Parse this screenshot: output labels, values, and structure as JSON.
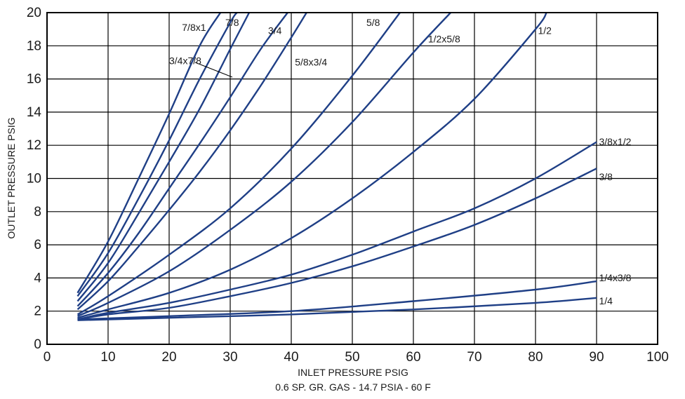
{
  "chart_data": {
    "type": "line",
    "title": "",
    "xlabel": "INLET  PRESSURE PSIG",
    "xlabel_sub": "0.6 SP. GR. GAS - 14.7 PSIA - 60 F",
    "ylabel": "OUTLET PRESSURE PSIG",
    "xlim": [
      0,
      100
    ],
    "ylim": [
      0,
      20
    ],
    "grid": true,
    "legend": "none",
    "x_ticks": [
      {
        "value": 0,
        "label": "0"
      },
      {
        "value": 10,
        "label": "10"
      },
      {
        "value": 20,
        "label": "20"
      },
      {
        "value": 30,
        "label": "30"
      },
      {
        "value": 40,
        "label": "40"
      },
      {
        "value": 50,
        "label": "50"
      },
      {
        "value": 60,
        "label": "60"
      },
      {
        "value": 70,
        "label": "70"
      },
      {
        "value": 80,
        "label": "80"
      },
      {
        "value": 90,
        "label": "90"
      },
      {
        "value": 100,
        "label": "100"
      }
    ],
    "y_ticks": [
      {
        "value": 0,
        "label": "0"
      },
      {
        "value": 2,
        "label": "2"
      },
      {
        "value": 4,
        "label": "4"
      },
      {
        "value": 6,
        "label": "6"
      },
      {
        "value": 8,
        "label": "8"
      },
      {
        "value": 10,
        "label": "10"
      },
      {
        "value": 12,
        "label": "12"
      },
      {
        "value": 14,
        "label": "14"
      },
      {
        "value": 16,
        "label": "16"
      },
      {
        "value": 18,
        "label": "18"
      },
      {
        "value": 20,
        "label": "20"
      }
    ],
    "line_color": "#1f3f86",
    "series": [
      {
        "name": "7/8x1",
        "x": [
          5,
          10,
          15,
          20,
          25,
          28.4
        ],
        "y": [
          3.1,
          6.2,
          10.0,
          13.9,
          18.0,
          20
        ]
      },
      {
        "name": "7/8",
        "x": [
          5,
          10,
          15,
          20,
          25,
          30,
          31.1
        ],
        "y": [
          2.9,
          5.5,
          8.8,
          12.3,
          16.0,
          19.4,
          20
        ]
      },
      {
        "name": "3/4x7/8",
        "x": [
          5,
          10,
          15,
          20,
          25,
          30,
          33.1
        ],
        "y": [
          2.6,
          4.9,
          7.9,
          11.0,
          14.2,
          17.8,
          20
        ]
      },
      {
        "name": "3/4",
        "x": [
          5,
          10,
          15,
          20,
          25,
          30,
          35,
          39.4
        ],
        "y": [
          2.3,
          4.3,
          6.7,
          9.4,
          12.1,
          14.9,
          17.8,
          20
        ]
      },
      {
        "name": "5/8x3/4",
        "x": [
          5,
          10,
          15,
          20,
          25,
          30,
          35,
          40,
          42.5
        ],
        "y": [
          2.1,
          3.8,
          5.9,
          8.1,
          10.4,
          12.9,
          15.6,
          18.5,
          20
        ]
      },
      {
        "name": "5/8",
        "x": [
          5,
          10,
          20,
          30,
          40,
          50,
          57.8
        ],
        "y": [
          1.8,
          2.9,
          5.4,
          8.2,
          11.8,
          16.2,
          20
        ]
      },
      {
        "name": "1/2x5/8",
        "x": [
          5,
          10,
          20,
          30,
          40,
          50,
          60,
          66.1
        ],
        "y": [
          1.7,
          2.5,
          4.4,
          6.9,
          9.8,
          13.4,
          17.6,
          20
        ]
      },
      {
        "name": "1/2",
        "x": [
          5,
          10,
          20,
          30,
          40,
          50,
          60,
          70,
          80,
          81.8
        ],
        "y": [
          1.6,
          2.1,
          3.1,
          4.5,
          6.4,
          8.8,
          11.6,
          14.8,
          19.0,
          20
        ]
      },
      {
        "name": "3/8x1/2",
        "x": [
          5,
          10,
          20,
          30,
          40,
          50,
          60,
          70,
          80,
          90
        ],
        "y": [
          1.5,
          1.9,
          2.5,
          3.3,
          4.2,
          5.4,
          6.8,
          8.2,
          10.0,
          12.2
        ]
      },
      {
        "name": "3/8",
        "x": [
          5,
          10,
          20,
          30,
          40,
          50,
          60,
          70,
          80,
          90
        ],
        "y": [
          1.5,
          1.8,
          2.2,
          2.9,
          3.7,
          4.7,
          5.9,
          7.2,
          8.8,
          10.6
        ]
      },
      {
        "name": "1/4x3/8",
        "x": [
          5,
          20,
          40,
          60,
          80,
          90
        ],
        "y": [
          1.5,
          1.7,
          2.0,
          2.6,
          3.3,
          3.8
        ]
      },
      {
        "name": "1/4",
        "x": [
          5,
          20,
          40,
          60,
          80,
          90
        ],
        "y": [
          1.45,
          1.6,
          1.8,
          2.1,
          2.5,
          2.8
        ]
      }
    ],
    "series_labels": [
      {
        "series": "7/8x1",
        "text": "7/8x1",
        "anchor_x": 22.1,
        "anchor_y": 18.9
      },
      {
        "series": "7/8",
        "text": "7/8",
        "anchor_x": 29.2,
        "anchor_y": 19.2
      },
      {
        "series": "3/4x7/8",
        "text": "3/4x7/8",
        "anchor_x": 20.0,
        "anchor_y": 16.9
      },
      {
        "series": "3/4",
        "text": "3/4",
        "anchor_x": 36.2,
        "anchor_y": 18.7
      },
      {
        "series": "5/8x3/4",
        "text": "5/8x3/4",
        "anchor_x": 40.6,
        "anchor_y": 16.8
      },
      {
        "series": "5/8",
        "text": "5/8",
        "anchor_x": 52.3,
        "anchor_y": 19.2
      },
      {
        "series": "1/2x5/8",
        "text": "1/2x5/8",
        "anchor_x": 62.4,
        "anchor_y": 18.2
      },
      {
        "series": "1/2",
        "text": "1/2",
        "anchor_x": 80.4,
        "anchor_y": 18.7
      },
      {
        "series": "3/8x1/2",
        "text": "3/8x1/2",
        "anchor_x": 90.4,
        "anchor_y": 12.0
      },
      {
        "series": "3/8",
        "text": "3/8",
        "anchor_x": 90.4,
        "anchor_y": 9.9
      },
      {
        "series": "1/4x3/8",
        "text": "1/4x3/8",
        "anchor_x": 90.4,
        "anchor_y": 3.8
      },
      {
        "series": "1/4",
        "text": "1/4",
        "anchor_x": 90.4,
        "anchor_y": 2.4
      }
    ]
  }
}
